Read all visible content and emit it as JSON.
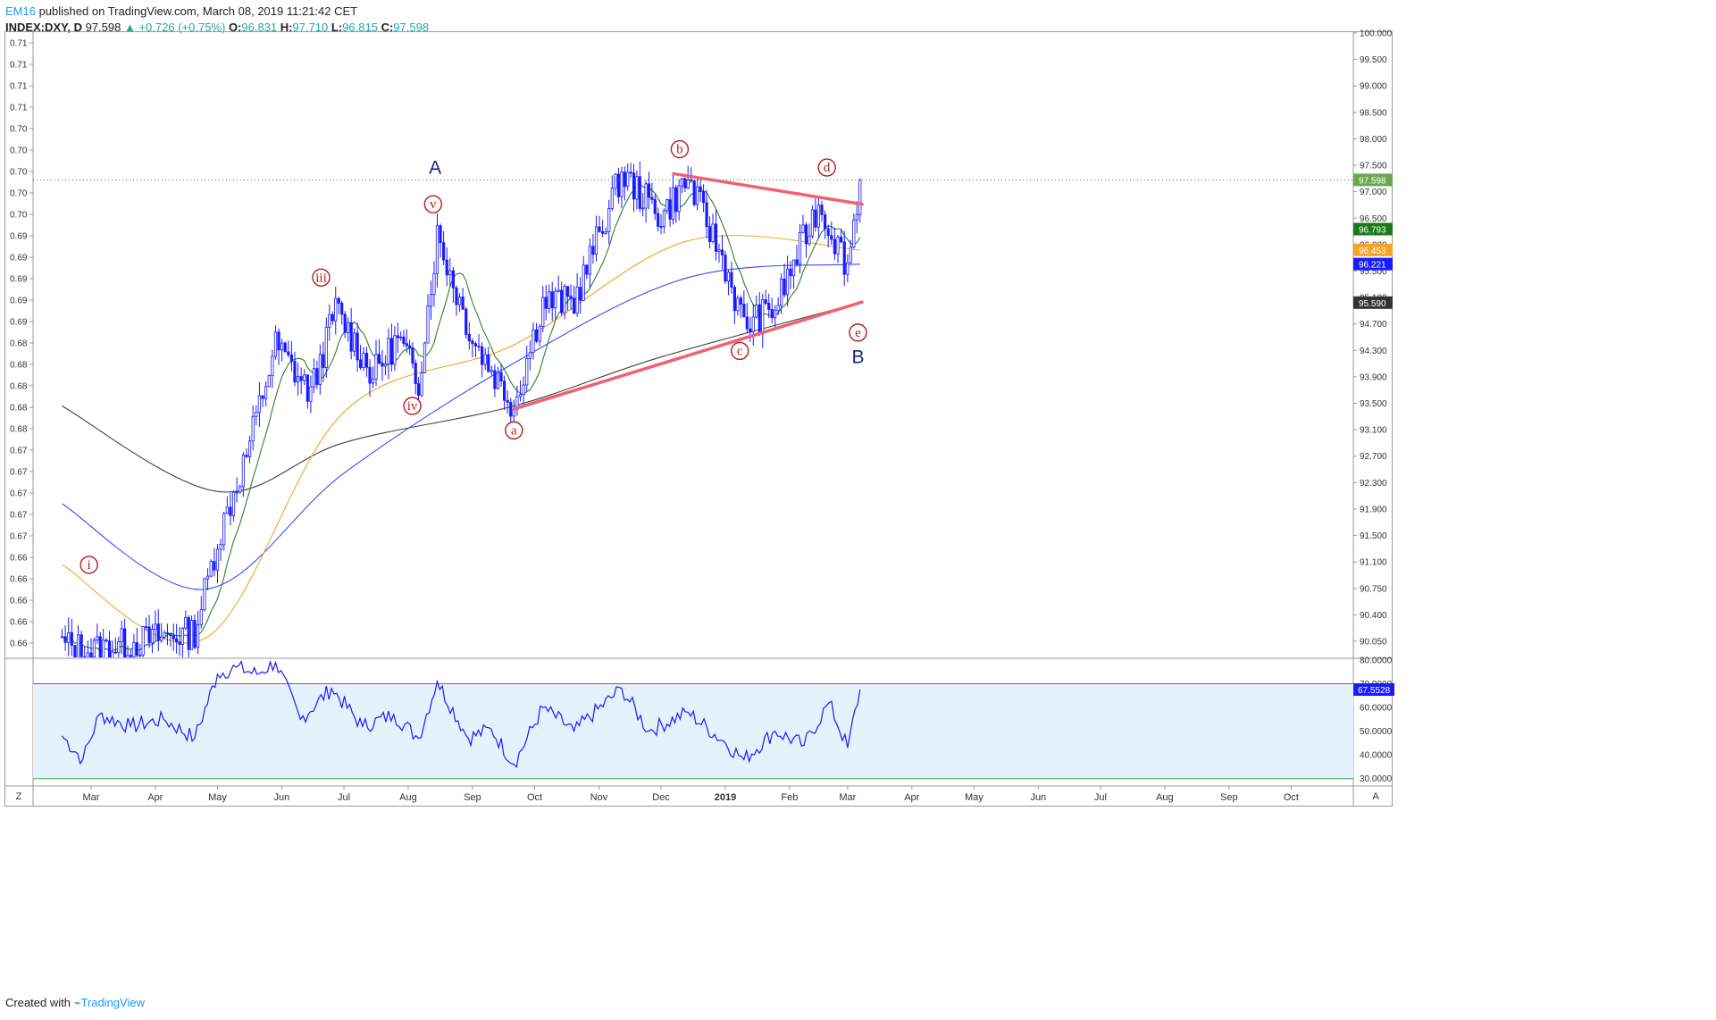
{
  "header": {
    "user": "EM16",
    "published": "published on TradingView.com, March 08, 2019 11:21:42 CET",
    "symbol": "INDEX:DXY, D",
    "last": "97.598",
    "change": "▲ +0.726 (+0.75%)",
    "o_label": "O:",
    "o_value": "96.831",
    "h_label": "H:",
    "h_value": "97.710",
    "l_label": "L:",
    "l_value": "96.815",
    "c_label": "C:",
    "c_value": "97.598"
  },
  "footer": {
    "created_with": "Created with",
    "brand": "TradingView"
  },
  "colors": {
    "candle": "#1a1aff",
    "ma_fast": "#2e7d32",
    "ma_mid": "#f7a325",
    "ma_slow": "#3949ff",
    "ma_long": "#424242",
    "trendline": "#f06272",
    "rsi": "#1a1aff",
    "rsi_fill": "#e3f2fd",
    "wave_red": "#b71c1c",
    "wave_blue": "#1a237e"
  },
  "chart_data": {
    "type": "line",
    "symbol": "INDEX:DXY, D",
    "right_axis_ticks": [
      "100.000",
      "99.500",
      "99.000",
      "98.500",
      "98.000",
      "97.500",
      "97.000",
      "96.500",
      "96.000",
      "95.500",
      "95.100",
      "94.700",
      "94.300",
      "93.900",
      "93.500",
      "93.100",
      "92.700",
      "92.300",
      "91.900",
      "91.500",
      "91.100",
      "90.750",
      "90.400",
      "90.050"
    ],
    "left_axis_ticks": [
      "0.71",
      "0.71",
      "0.71",
      "0.71",
      "0.70",
      "0.70",
      "0.70",
      "0.70",
      "0.70",
      "0.69",
      "0.69",
      "0.69",
      "0.69",
      "0.69",
      "0.68",
      "0.68",
      "0.68",
      "0.68",
      "0.68",
      "0.67",
      "0.67",
      "0.67",
      "0.67",
      "0.67",
      "0.66",
      "0.66",
      "0.66",
      "0.66",
      "0.66",
      "0.66"
    ],
    "x_axis_ticks": [
      "Mar",
      "Apr",
      "May",
      "Jun",
      "Jul",
      "Aug",
      "Sep",
      "Oct",
      "Nov",
      "Dec",
      "2019",
      "Feb",
      "Mar",
      "Apr",
      "May",
      "Jun",
      "Jul",
      "Aug",
      "Sep",
      "Oct"
    ],
    "price_tags": [
      {
        "value": "97.598",
        "color": "#6aa84f"
      },
      {
        "value": "96.793",
        "color": "#1b7a1b"
      },
      {
        "value": "96.453",
        "color": "#f7a325"
      },
      {
        "value": "96.221",
        "color": "#1a1aff"
      },
      {
        "value": "95.590",
        "color": "#333333"
      }
    ],
    "price_series_approx": [
      {
        "x": "2018-02-15",
        "y": 90.0
      },
      {
        "x": "2018-03-01",
        "y": 89.9
      },
      {
        "x": "2018-04-01",
        "y": 90.1
      },
      {
        "x": "2018-04-20",
        "y": 90.2
      },
      {
        "x": "2018-05-01",
        "y": 91.7
      },
      {
        "x": "2018-05-15",
        "y": 93.1
      },
      {
        "x": "2018-05-29",
        "y": 94.9
      },
      {
        "x": "2018-06-15",
        "y": 94.1
      },
      {
        "x": "2018-06-27",
        "y": 95.5
      },
      {
        "x": "2018-07-15",
        "y": 94.4
      },
      {
        "x": "2018-07-27",
        "y": 95.0
      },
      {
        "x": "2018-08-06",
        "y": 94.3
      },
      {
        "x": "2018-08-15",
        "y": 96.7
      },
      {
        "x": "2018-09-01",
        "y": 95.0
      },
      {
        "x": "2018-09-21",
        "y": 93.9
      },
      {
        "x": "2018-10-05",
        "y": 95.6
      },
      {
        "x": "2018-10-20",
        "y": 95.6
      },
      {
        "x": "2018-11-12",
        "y": 97.7
      },
      {
        "x": "2018-12-01",
        "y": 97.0
      },
      {
        "x": "2018-12-14",
        "y": 97.6
      },
      {
        "x": "2019-01-01",
        "y": 96.2
      },
      {
        "x": "2019-01-10",
        "y": 95.2
      },
      {
        "x": "2019-01-25",
        "y": 95.5
      },
      {
        "x": "2019-02-15",
        "y": 97.2
      },
      {
        "x": "2019-03-01",
        "y": 96.2
      },
      {
        "x": "2019-03-07",
        "y": 97.6
      }
    ],
    "moving_averages_approx": [
      {
        "name": "ma_long",
        "points": [
          {
            "x": "2018-02-15",
            "y": 93.9
          },
          {
            "x": "2018-05-01",
            "y": 92.5
          },
          {
            "x": "2018-07-01",
            "y": 93.3
          },
          {
            "x": "2018-09-21",
            "y": 93.9
          },
          {
            "x": "2018-12-01",
            "y": 94.7
          },
          {
            "x": "2019-03-07",
            "y": 95.59
          }
        ]
      },
      {
        "name": "ma_slow",
        "points": [
          {
            "x": "2018-02-15",
            "y": 92.3
          },
          {
            "x": "2018-04-25",
            "y": 90.9
          },
          {
            "x": "2018-07-01",
            "y": 92.8
          },
          {
            "x": "2018-09-21",
            "y": 94.6
          },
          {
            "x": "2018-12-14",
            "y": 96.0
          },
          {
            "x": "2019-03-07",
            "y": 96.22
          }
        ]
      },
      {
        "name": "ma_mid",
        "points": [
          {
            "x": "2018-02-15",
            "y": 91.3
          },
          {
            "x": "2018-04-25",
            "y": 90.1
          },
          {
            "x": "2018-07-01",
            "y": 93.8
          },
          {
            "x": "2018-09-21",
            "y": 94.9
          },
          {
            "x": "2018-12-14",
            "y": 96.6
          },
          {
            "x": "2019-03-07",
            "y": 96.45
          }
        ]
      }
    ],
    "trendlines": [
      {
        "from": {
          "x": "2018-12-07",
          "y": 97.7
        },
        "to": {
          "x": "2019-03-08",
          "y": 97.2
        }
      },
      {
        "from": {
          "x": "2018-09-21",
          "y": 93.85
        },
        "to": {
          "x": "2019-03-08",
          "y": 95.6
        }
      }
    ],
    "wave_labels": [
      {
        "text": "i",
        "x": "2018-02-28",
        "y": 91.3
      },
      {
        "text": "iii",
        "x": "2018-06-20",
        "y": 96.0
      },
      {
        "text": "iv",
        "x": "2018-08-03",
        "y": 93.9
      },
      {
        "text": "v",
        "x": "2018-08-13",
        "y": 97.2
      },
      {
        "text": "A",
        "x": "2018-08-14",
        "y": 97.8
      },
      {
        "text": "a",
        "x": "2018-09-21",
        "y": 93.5
      },
      {
        "text": "b",
        "x": "2018-12-10",
        "y": 98.1
      },
      {
        "text": "c",
        "x": "2019-01-08",
        "y": 94.8
      },
      {
        "text": "d",
        "x": "2019-02-19",
        "y": 97.8
      },
      {
        "text": "e",
        "x": "2019-03-06",
        "y": 95.1
      },
      {
        "text": "B",
        "x": "2019-03-06",
        "y": 94.7
      }
    ],
    "rsi": {
      "axis_ticks": [
        "80.0000",
        "70.0000",
        "60.0000",
        "50.0000",
        "40.0000",
        "30.0000"
      ],
      "value_tag": "67.5528",
      "levels": [
        70,
        30
      ],
      "ylim": [
        28,
        80
      ],
      "series_approx": [
        {
          "x": "2018-02-15",
          "y": 48
        },
        {
          "x": "2018-02-25",
          "y": 38
        },
        {
          "x": "2018-03-05",
          "y": 57
        },
        {
          "x": "2018-03-20",
          "y": 52
        },
        {
          "x": "2018-04-05",
          "y": 55
        },
        {
          "x": "2018-04-20",
          "y": 47
        },
        {
          "x": "2018-05-01",
          "y": 74
        },
        {
          "x": "2018-05-10",
          "y": 77
        },
        {
          "x": "2018-05-20",
          "y": 74
        },
        {
          "x": "2018-05-29",
          "y": 79
        },
        {
          "x": "2018-06-10",
          "y": 55
        },
        {
          "x": "2018-06-25",
          "y": 68
        },
        {
          "x": "2018-07-10",
          "y": 52
        },
        {
          "x": "2018-07-25",
          "y": 57
        },
        {
          "x": "2018-08-06",
          "y": 47
        },
        {
          "x": "2018-08-15",
          "y": 71
        },
        {
          "x": "2018-08-30",
          "y": 47
        },
        {
          "x": "2018-09-10",
          "y": 51
        },
        {
          "x": "2018-09-21",
          "y": 36
        },
        {
          "x": "2018-10-05",
          "y": 60
        },
        {
          "x": "2018-10-20",
          "y": 50
        },
        {
          "x": "2018-11-12",
          "y": 68
        },
        {
          "x": "2018-11-25",
          "y": 50
        },
        {
          "x": "2018-12-14",
          "y": 58
        },
        {
          "x": "2019-01-01",
          "y": 45
        },
        {
          "x": "2019-01-10",
          "y": 38
        },
        {
          "x": "2019-01-25",
          "y": 50
        },
        {
          "x": "2019-02-08",
          "y": 44
        },
        {
          "x": "2019-02-20",
          "y": 62
        },
        {
          "x": "2019-03-01",
          "y": 43
        },
        {
          "x": "2019-03-07",
          "y": 67.55
        }
      ]
    }
  }
}
